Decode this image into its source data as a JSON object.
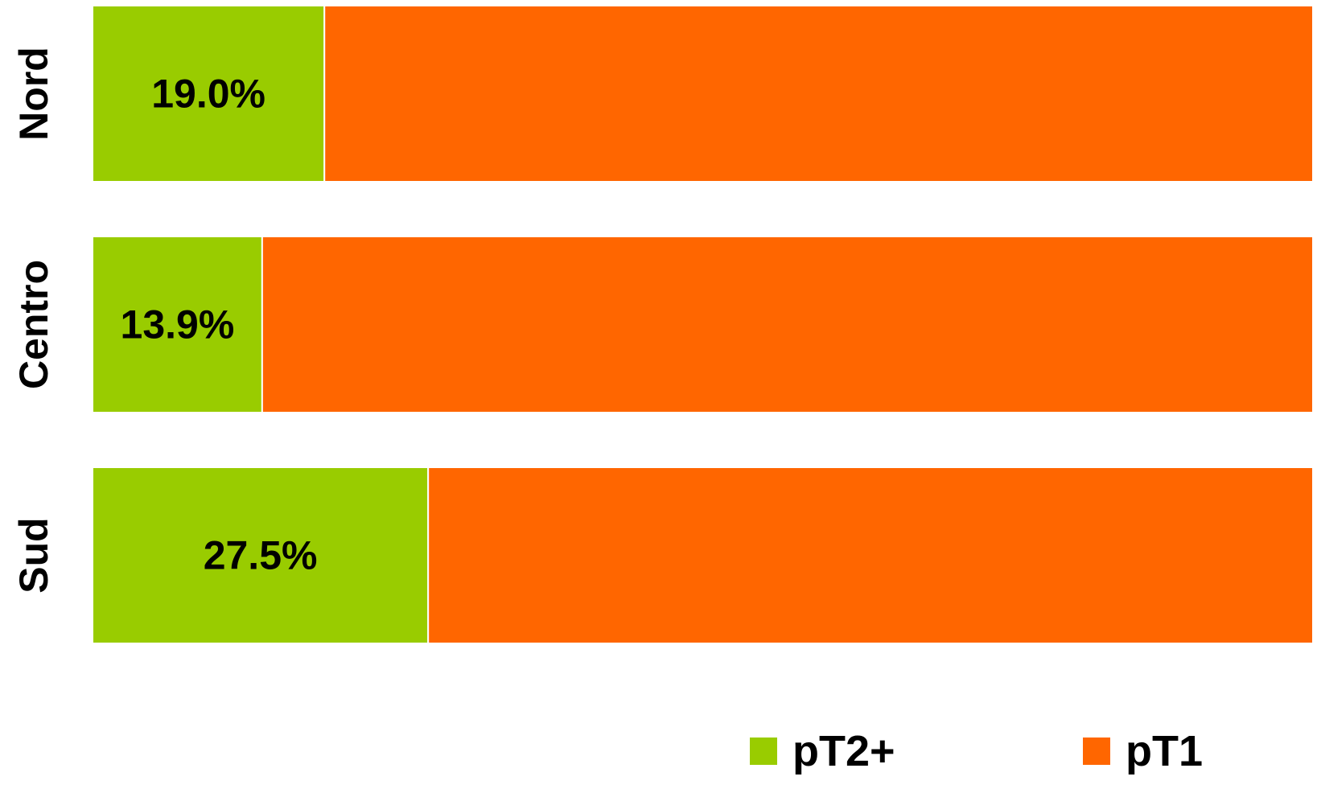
{
  "chart_data": {
    "type": "bar",
    "orientation": "horizontal",
    "stacked": true,
    "percent_stacked": true,
    "categories": [
      "Nord",
      "Centro",
      "Sud"
    ],
    "series": [
      {
        "name": "pT2+",
        "color": "#99CC00",
        "values": [
          19.0,
          13.9,
          27.5
        ],
        "labels": [
          "19.0%",
          "13.9%",
          "27.5%"
        ]
      },
      {
        "name": "pT1",
        "color": "#FF6600",
        "values": [
          81.0,
          86.1,
          72.5
        ]
      }
    ],
    "xlim": [
      0,
      100
    ],
    "grid": false,
    "legend_position": "bottom-right"
  }
}
